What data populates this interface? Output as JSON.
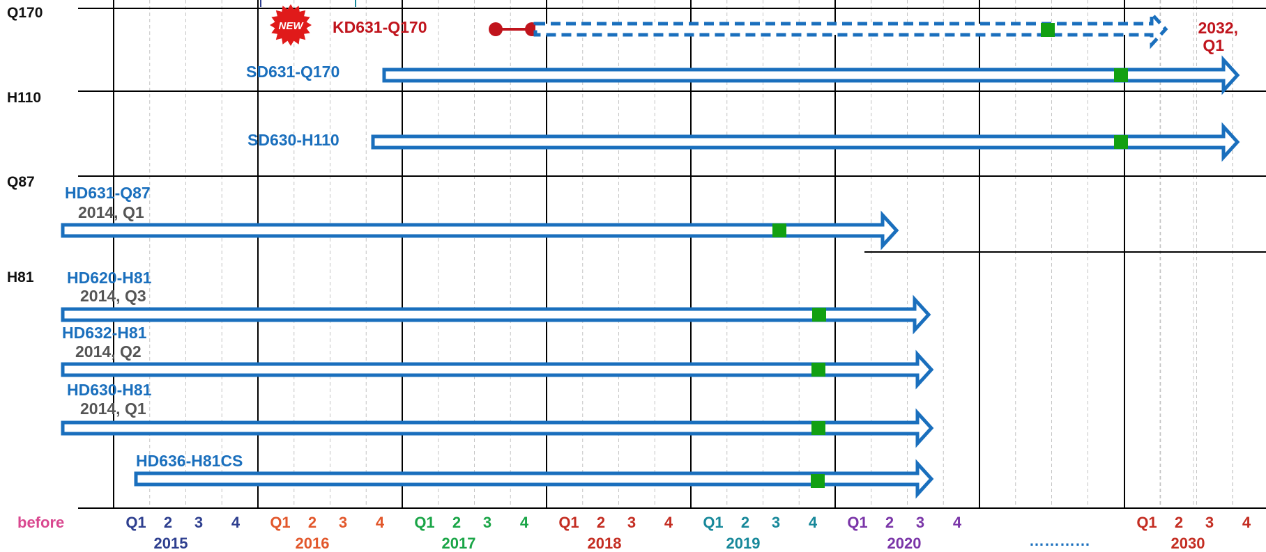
{
  "chipsets": [
    "Q170",
    "H110",
    "Q87",
    "H81"
  ],
  "timeline": {
    "before_label": "before",
    "before_color": "#d9478f",
    "gap_label": "…………",
    "gap_color": "#1a6fbd",
    "years": [
      {
        "year": "2015",
        "quarters": [
          "Q1",
          "2",
          "3",
          "4"
        ],
        "color": "#2e3f8f"
      },
      {
        "year": "2016",
        "quarters": [
          "Q1",
          "2",
          "3",
          "4"
        ],
        "color": "#e2572b"
      },
      {
        "year": "2017",
        "quarters": [
          "Q1",
          "2",
          "3",
          "4"
        ],
        "color": "#1aa547"
      },
      {
        "year": "2018",
        "quarters": [
          "Q1",
          "2",
          "3",
          "4"
        ],
        "color": "#c42d22"
      },
      {
        "year": "2019",
        "quarters": [
          "Q1",
          "2",
          "3",
          "4"
        ],
        "color": "#17889a"
      },
      {
        "year": "2020",
        "quarters": [
          "Q1",
          "2",
          "3",
          "4"
        ],
        "color": "#7a35a8"
      },
      {
        "year": "2030",
        "quarters": [
          "Q1",
          "2",
          "3",
          "4"
        ],
        "color": "#c42d22"
      }
    ]
  },
  "products": [
    {
      "name": "KD631-Q170",
      "status": "new",
      "new_badge": "NEW",
      "end_label_line1": "2032,",
      "end_label_line2": "Q1",
      "name_color": "#c0141c"
    },
    {
      "name": "SD631-Q170",
      "name_color": "#1a6fbd"
    },
    {
      "name": "SD630-H110",
      "name_color": "#1a6fbd"
    },
    {
      "name": "HD631-Q87",
      "intro": "2014, Q1",
      "name_color": "#1a6fbd"
    },
    {
      "name": "HD620-H81",
      "intro": "2014, Q3",
      "name_color": "#1a6fbd"
    },
    {
      "name": "HD632-H81",
      "intro": "2014, Q2",
      "name_color": "#1a6fbd"
    },
    {
      "name": "HD630-H81",
      "intro": "2014, Q1",
      "name_color": "#1a6fbd"
    },
    {
      "name": "HD636-H81CS",
      "name_color": "#1a6fbd"
    }
  ],
  "colors": {
    "bar": "#1a6fbd",
    "milestone": "#12a012",
    "new_marker": "#c0141c",
    "intro_text": "#555555",
    "chipset_text": "#111111"
  }
}
